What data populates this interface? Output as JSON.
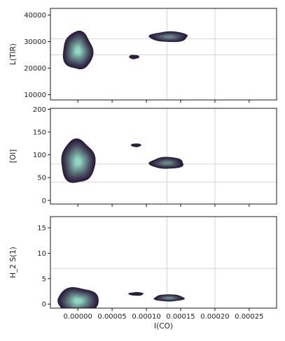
{
  "chart_data": [
    {
      "type": "contour",
      "ylabel": "L(TIR)",
      "xlim": [
        -4e-05,
        0.00029
      ],
      "ylim": [
        8000,
        42500
      ],
      "yticks": [
        10000,
        20000,
        30000,
        40000
      ],
      "ytick_labels": [
        "10000",
        "20000",
        "30000",
        "40000"
      ],
      "grid_x": [
        0.00013,
        0.0002
      ],
      "grid_y": [
        25000,
        31000
      ],
      "blobs": [
        {
          "x": 0.0,
          "y": 26500,
          "sx": 2.2e-05,
          "sy": 7200,
          "levels": 10
        },
        {
          "x": 8.2e-05,
          "y": 24200,
          "sx": 7.5e-06,
          "sy": 800,
          "levels": 1
        },
        {
          "x": 0.000133,
          "y": 31800,
          "sx": 2.8e-05,
          "sy": 2000,
          "levels": 5
        }
      ]
    },
    {
      "type": "contour",
      "ylabel": "[OI]",
      "xlim": [
        -4e-05,
        0.00029
      ],
      "ylim": [
        -8,
        202
      ],
      "yticks": [
        0,
        50,
        100,
        150,
        200
      ],
      "ytick_labels": [
        "0",
        "50",
        "100",
        "150",
        "200"
      ],
      "grid_x": [
        0.00013,
        0.0002
      ],
      "grid_y": [
        40,
        80
      ],
      "blobs": [
        {
          "x": 0.0,
          "y": 85,
          "sx": 2.5e-05,
          "sy": 48,
          "levels": 10
        },
        {
          "x": 8.5e-05,
          "y": 121,
          "sx": 7.5e-06,
          "sy": 4,
          "levels": 1
        },
        {
          "x": 0.00013,
          "y": 82,
          "sx": 2.5e-05,
          "sy": 13,
          "levels": 5
        }
      ]
    },
    {
      "type": "contour",
      "ylabel": "H_2 S(1)",
      "xlabel": "I(CO)",
      "xlim": [
        -4e-05,
        0.00029
      ],
      "ylim": [
        -0.8,
        17.2
      ],
      "yticks": [
        0,
        5,
        10,
        15
      ],
      "ytick_labels": [
        "0",
        "5",
        "10",
        "15"
      ],
      "xticks": [
        0.0,
        5e-05,
        0.0001,
        0.00015,
        0.0002,
        0.00025
      ],
      "xtick_labels": [
        "0.00000",
        "0.00005",
        "0.00010",
        "0.00015",
        "0.00020",
        "0.00025"
      ],
      "grid_x": [
        0.00013,
        0.0002
      ],
      "grid_y": [
        7
      ],
      "blobs": [
        {
          "x": 0.0,
          "y": 0.6,
          "sx": 3e-05,
          "sy": 2.7,
          "levels": 10
        },
        {
          "x": 8.5e-05,
          "y": 2.0,
          "sx": 1.1e-05,
          "sy": 0.35,
          "levels": 1
        },
        {
          "x": 0.000133,
          "y": 1.2,
          "sx": 2.2e-05,
          "sy": 0.7,
          "levels": 4
        }
      ]
    }
  ],
  "colors": {
    "outer": "#2d1e3e",
    "inner": "#8fd6bf",
    "grid": "#d4d4d4",
    "axes": "#000000"
  }
}
